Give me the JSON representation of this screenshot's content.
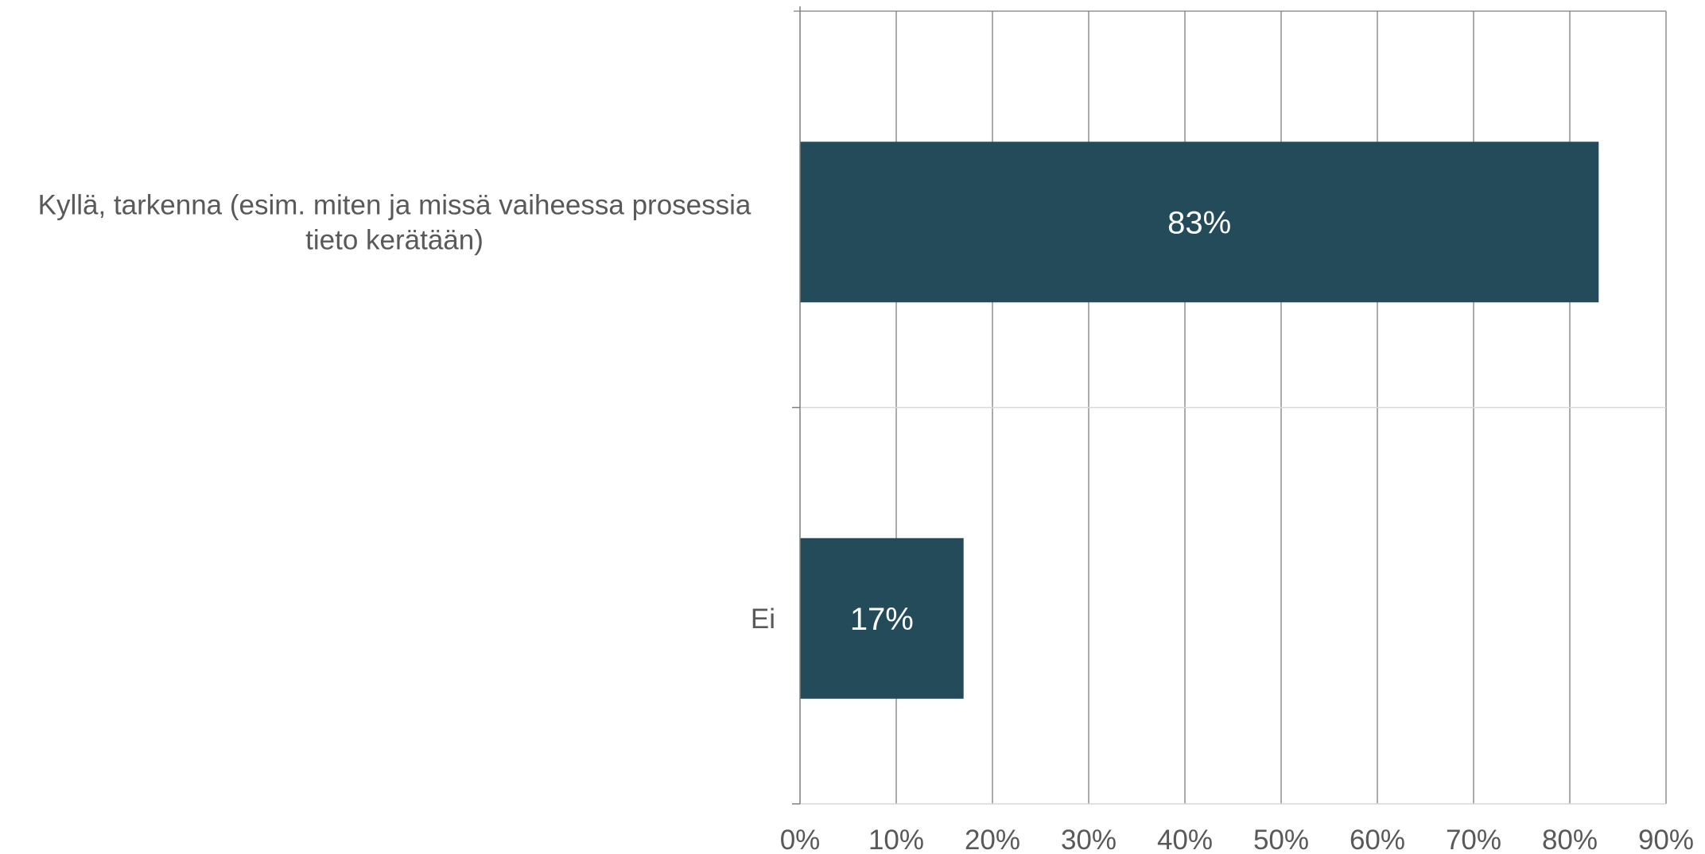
{
  "chart_data": {
    "type": "bar",
    "orientation": "horizontal",
    "title": "",
    "xlabel": "",
    "ylabel": "",
    "categories": [
      [
        "Kyllä, tarkenna (esim. miten ja missä vaiheessa prosessia",
        "tieto kerätään)"
      ],
      [
        "Ei"
      ]
    ],
    "values": [
      83,
      17
    ],
    "data_labels": [
      "83%",
      "17%"
    ],
    "xlim": [
      0,
      90
    ],
    "ticks": [
      0,
      10,
      20,
      30,
      40,
      50,
      60,
      70,
      80,
      90
    ],
    "tick_labels": [
      "0%",
      "10%",
      "20%",
      "30%",
      "40%",
      "50%",
      "60%",
      "70%",
      "80%",
      "90%"
    ],
    "grid": true,
    "legend": "none",
    "colors": {
      "bar": "#234b5a",
      "grid": "#7f7f7f",
      "text": "#595959",
      "data_label": "#ffffff"
    }
  }
}
